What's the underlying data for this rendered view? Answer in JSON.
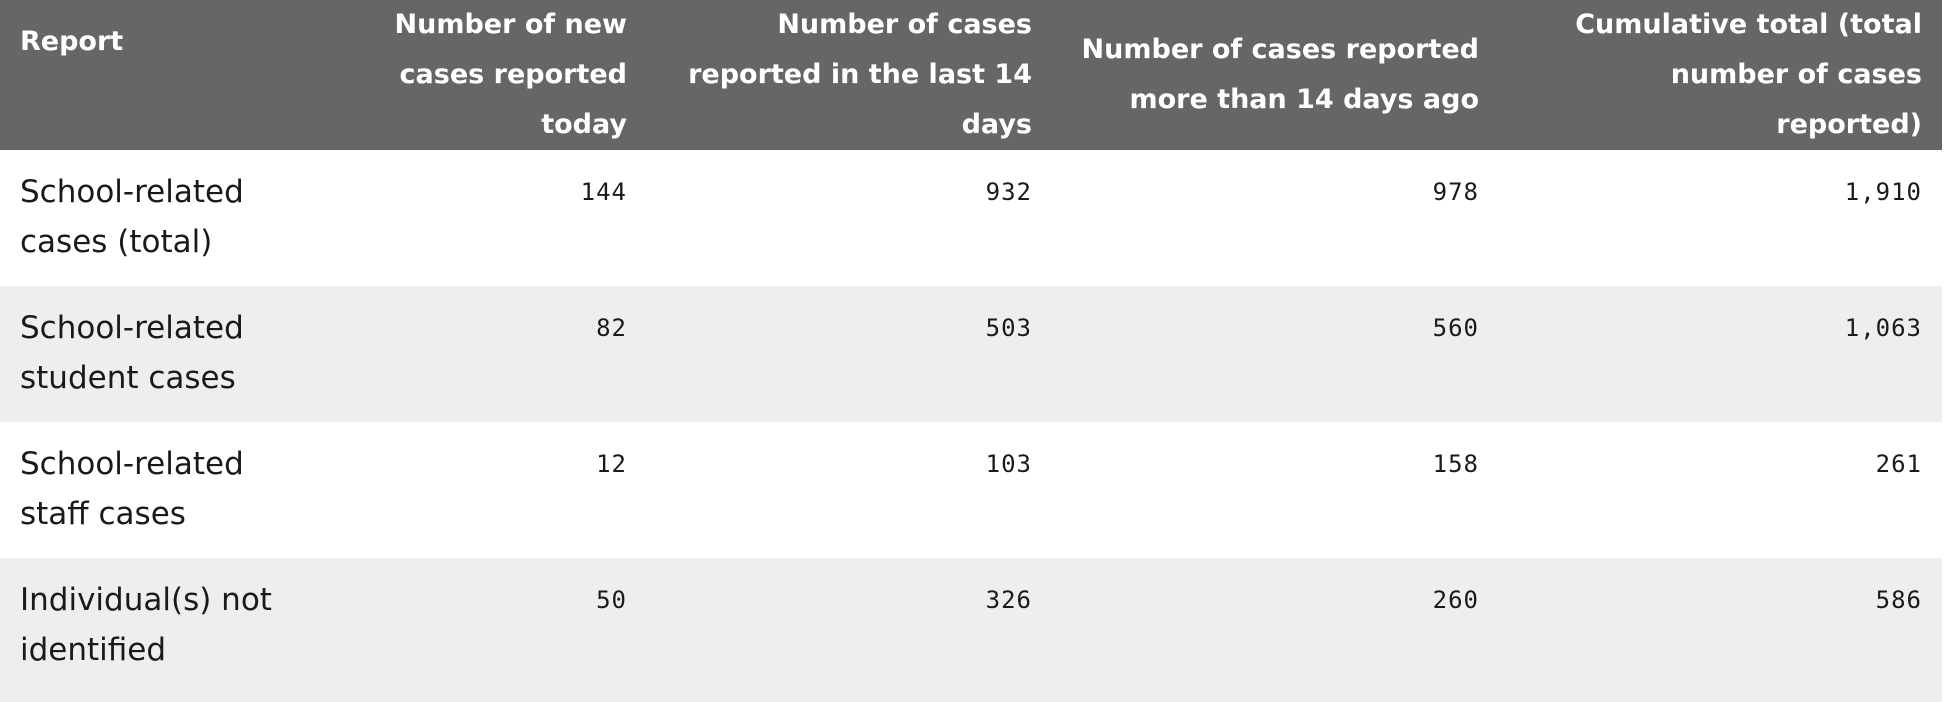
{
  "table": {
    "headers": [
      "Report",
      "Number of new cases reported today",
      "Number of cases reported in the last 14 days",
      "Number of cases reported more than 14 days ago",
      "Cumulative total (total number of cases reported)"
    ],
    "rows": [
      {
        "label": "School-related cases (total)",
        "today": "144",
        "last14": "932",
        "older": "978",
        "cumulative": "1,910"
      },
      {
        "label": "School-related student cases",
        "today": "82",
        "last14": "503",
        "older": "560",
        "cumulative": "1,063"
      },
      {
        "label": "School-related staff cases",
        "today": "12",
        "last14": "103",
        "older": "158",
        "cumulative": "261"
      },
      {
        "label": "Individual(s) not identified",
        "today": "50",
        "last14": "326",
        "older": "260",
        "cumulative": "586"
      }
    ]
  },
  "colors": {
    "header_bg": "#666666",
    "header_text": "#ffffff",
    "row_alt_bg": "#eeeeee"
  }
}
